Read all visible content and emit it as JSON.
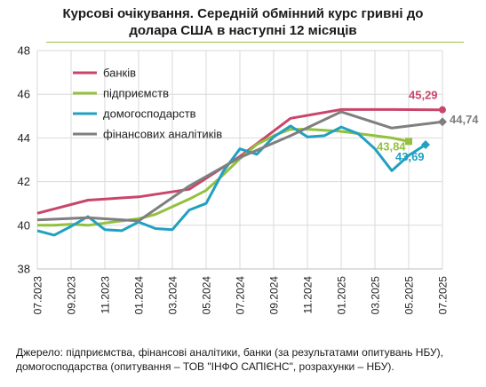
{
  "title_line1": "Курсові очікування. Середній обмінний курс гривні до",
  "title_line2": "долара США в наступні 12 місяців",
  "source_line1": "Джерело: підприємства, фінансові аналітики, банки (за результатами опитувань НБУ),",
  "source_line2": "домогосподарства (опитування – ТОВ \"ІНФО САПІЄНС\", розрахунки – НБУ).",
  "chart_data": {
    "type": "line",
    "x": [
      "07.2023",
      "08.2023",
      "09.2023",
      "10.2023",
      "11.2023",
      "12.2023",
      "01.2024",
      "02.2024",
      "03.2024",
      "04.2024",
      "05.2024",
      "06.2024",
      "07.2024",
      "08.2024",
      "09.2024",
      "10.2024",
      "11.2024",
      "12.2024",
      "01.2025",
      "02.2025",
      "03.2025",
      "04.2025",
      "05.2025",
      "06.2025",
      "07.2025"
    ],
    "x_tick_labels": [
      "07.2023",
      "09.2023",
      "11.2023",
      "01.2024",
      "03.2024",
      "05.2024",
      "07.2024",
      "09.2024",
      "11.2024",
      "01.2025",
      "03.2025",
      "05.2025",
      "07.2025"
    ],
    "ylim": [
      38,
      48
    ],
    "yticks": [
      38,
      40,
      42,
      44,
      46,
      48
    ],
    "grid": true,
    "legend_placement": "top-left",
    "series": [
      {
        "name": "банків",
        "color": "#c9466b",
        "x": [
          "07.2023",
          "10.2023",
          "01.2024",
          "04.2024",
          "07.2024",
          "10.2024",
          "01.2025",
          "04.2025",
          "07.2025"
        ],
        "values": [
          40.55,
          41.15,
          41.3,
          41.65,
          43.15,
          44.9,
          45.3,
          45.3,
          45.29
        ],
        "end_label": "45,29"
      },
      {
        "name": "підприємств",
        "color": "#93c13e",
        "x": [
          "07.2023",
          "08.2023",
          "09.2023",
          "10.2023",
          "11.2023",
          "12.2023",
          "01.2024",
          "02.2024",
          "03.2024",
          "04.2024",
          "05.2024",
          "06.2024",
          "07.2024",
          "08.2024",
          "09.2024",
          "10.2024",
          "11.2024",
          "12.2024",
          "01.2025",
          "02.2025",
          "03.2025",
          "04.2025",
          "05.2025"
        ],
        "values": [
          40.0,
          40.0,
          40.05,
          40.0,
          40.1,
          40.2,
          40.3,
          40.5,
          40.85,
          41.2,
          41.6,
          42.3,
          43.05,
          43.7,
          44.1,
          44.4,
          44.4,
          44.35,
          44.3,
          44.2,
          44.1,
          44.0,
          43.84
        ],
        "end_label": "43,84"
      },
      {
        "name": "домогосподарств",
        "color": "#21a0c2",
        "x": [
          "07.2023",
          "08.2023",
          "09.2023",
          "10.2023",
          "11.2023",
          "12.2023",
          "01.2024",
          "02.2024",
          "03.2024",
          "04.2024",
          "05.2024",
          "06.2024",
          "07.2024",
          "08.2024",
          "09.2024",
          "10.2024",
          "11.2024",
          "12.2024",
          "01.2025",
          "02.2025",
          "03.2025",
          "04.2025",
          "05.2025",
          "06.2025"
        ],
        "values": [
          39.75,
          39.55,
          39.95,
          40.4,
          39.8,
          39.75,
          40.15,
          39.85,
          39.8,
          40.7,
          41.0,
          42.45,
          43.5,
          43.25,
          44.05,
          44.55,
          44.05,
          44.1,
          44.5,
          44.2,
          43.5,
          42.5,
          43.2,
          43.69
        ],
        "end_label": "43,69"
      },
      {
        "name": "фінансових аналітиків",
        "color": "#7f7f7f",
        "x": [
          "07.2023",
          "10.2023",
          "01.2024",
          "04.2024",
          "07.2024",
          "10.2024",
          "01.2025",
          "04.2025",
          "07.2025"
        ],
        "values": [
          40.25,
          40.35,
          40.2,
          41.8,
          43.1,
          44.1,
          45.2,
          44.45,
          44.74
        ],
        "end_label": "44,74"
      }
    ]
  }
}
